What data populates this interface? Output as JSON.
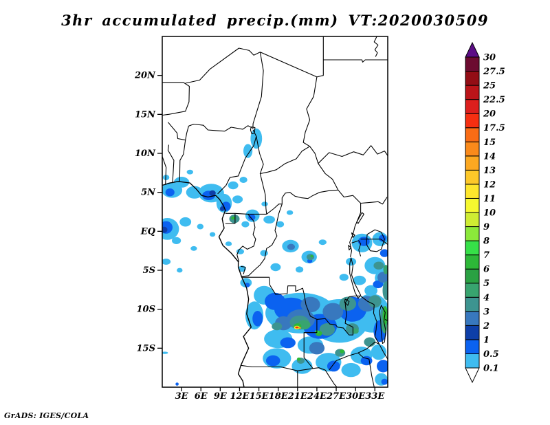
{
  "title": "3hr accumulated precip.(mm) VT:2020030509",
  "credit": "GrADS: IGES/COLA",
  "axes": {
    "y_labels": [
      "20N",
      "15N",
      "10N",
      "5N",
      "EQ",
      "5S",
      "10S",
      "15S"
    ],
    "x_labels": [
      "3E",
      "6E",
      "9E",
      "12E",
      "15E",
      "18E",
      "21E",
      "24E",
      "27E",
      "30E",
      "33E"
    ]
  },
  "colorbar": {
    "levels_bottom_to_top": [
      "0.1",
      "0.5",
      "1",
      "2",
      "3",
      "4",
      "5",
      "6",
      "7",
      "8",
      "9",
      "10",
      "11",
      "12",
      "13",
      "14",
      "15",
      "17.5",
      "20",
      "22.5",
      "25",
      "27.5",
      "30"
    ],
    "segment_colors_bottom_to_top": [
      "#3FBCF0",
      "#0B62F0",
      "#0E3FA8",
      "#3878BE",
      "#3D9490",
      "#38A46F",
      "#2AA143",
      "#2DB838",
      "#36E048",
      "#8BE83A",
      "#CFEC33",
      "#F6F82F",
      "#FEE62C",
      "#FDC829",
      "#FCA821",
      "#FA8A1B",
      "#F96C15",
      "#F52F11",
      "#DC1F1D",
      "#BB1419",
      "#930D15",
      "#6C0B30"
    ],
    "above_max_color": "#5C0D86",
    "below_min_color": "#FFFFFF"
  },
  "chart_data": {
    "type": "heatmap",
    "title": "3hr accumulated precip.(mm) VT:2020030509",
    "units": "mm",
    "variable": "3hr accumulated precipitation",
    "valid_time_label": "VT:2020030509",
    "levels": [
      0.1,
      0.5,
      1,
      2,
      3,
      4,
      5,
      6,
      7,
      8,
      9,
      10,
      11,
      12,
      13,
      14,
      15,
      17.5,
      20,
      22.5,
      25,
      27.5,
      30
    ],
    "x_tick_labels": [
      "3E",
      "6E",
      "9E",
      "12E",
      "15E",
      "18E",
      "21E",
      "24E",
      "27E",
      "30E",
      "33E"
    ],
    "y_tick_labels": [
      "20N",
      "15N",
      "10N",
      "5N",
      "EQ",
      "5S",
      "10S",
      "15S"
    ],
    "legend_position": "right"
  }
}
